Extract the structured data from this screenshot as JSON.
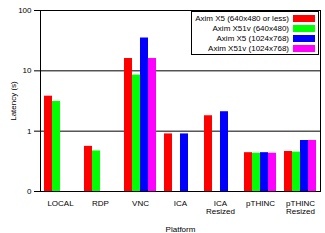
{
  "chart_data": {
    "type": "bar",
    "categories": [
      "LOCAL",
      "RDP",
      "VNC",
      "ICA",
      "ICA Resized",
      "pTHINC",
      "pTHINC Resized"
    ],
    "series": [
      {
        "name": "Axim X5 (640x480 or less)",
        "color": "#ff0000",
        "values": [
          3.8,
          0.56,
          16,
          0.9,
          1.8,
          0.44,
          0.46
        ]
      },
      {
        "name": "Axim X51v (640x480)",
        "color": "#00ff00",
        "values": [
          3.1,
          0.47,
          8.5,
          null,
          null,
          0.43,
          0.45
        ]
      },
      {
        "name": "Axim X5 (1024x768)",
        "color": "#0000ff",
        "values": [
          null,
          null,
          35,
          0.9,
          2.1,
          0.44,
          0.7
        ]
      },
      {
        "name": "Axim X51v (1024x768)",
        "color": "#ff00ff",
        "values": [
          null,
          null,
          16,
          null,
          null,
          0.43,
          0.7
        ]
      }
    ],
    "x_label": "Platform",
    "y_label": "Latency (s)",
    "log": "y",
    "ylim": [
      0.1,
      100
    ],
    "yticks": [
      {
        "value": 0.1,
        "label": "0"
      },
      1,
      10,
      100
    ],
    "grid": true,
    "legend": "top-right"
  }
}
